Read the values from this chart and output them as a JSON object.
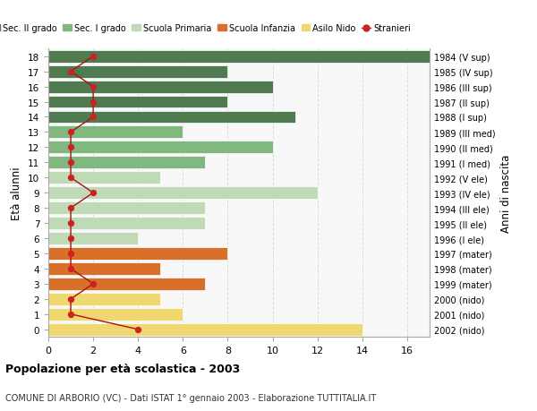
{
  "ages": [
    18,
    17,
    16,
    15,
    14,
    13,
    12,
    11,
    10,
    9,
    8,
    7,
    6,
    5,
    4,
    3,
    2,
    1,
    0
  ],
  "right_labels": [
    "1984 (V sup)",
    "1985 (IV sup)",
    "1986 (III sup)",
    "1987 (II sup)",
    "1988 (I sup)",
    "1989 (III med)",
    "1990 (II med)",
    "1991 (I med)",
    "1992 (V ele)",
    "1993 (IV ele)",
    "1994 (III ele)",
    "1995 (II ele)",
    "1996 (I ele)",
    "1997 (mater)",
    "1998 (mater)",
    "1999 (mater)",
    "2000 (nido)",
    "2001 (nido)",
    "2002 (nido)"
  ],
  "bar_values": [
    17,
    8,
    10,
    8,
    11,
    6,
    10,
    7,
    5,
    12,
    7,
    7,
    4,
    8,
    5,
    7,
    5,
    6,
    14
  ],
  "bar_colors": [
    "#507a50",
    "#507a50",
    "#507a50",
    "#507a50",
    "#507a50",
    "#80b880",
    "#80b880",
    "#80b880",
    "#c0dab8",
    "#c0dab8",
    "#c0dab8",
    "#c0dab8",
    "#c0dab8",
    "#d8702a",
    "#d8702a",
    "#d8702a",
    "#f0d870",
    "#f0d870",
    "#f0d870"
  ],
  "stranieri_values": [
    2,
    1,
    2,
    2,
    2,
    1,
    1,
    1,
    1,
    2,
    1,
    1,
    1,
    1,
    1,
    2,
    1,
    1,
    4
  ],
  "legend_labels": [
    "Sec. II grado",
    "Sec. I grado",
    "Scuola Primaria",
    "Scuola Infanzia",
    "Asilo Nido",
    "Stranieri"
  ],
  "legend_colors": [
    "#507a50",
    "#80b880",
    "#c0dab8",
    "#d8702a",
    "#f0d870",
    "#cc2222"
  ],
  "ylabel": "Età alunni",
  "ylabel_right": "Anni di nascita",
  "title": "Popolazione per età scolastica - 2003",
  "subtitle": "COMUNE DI ARBORIO (VC) - Dati ISTAT 1° gennaio 2003 - Elaborazione TUTTITALIA.IT",
  "bg_color": "#ffffff",
  "plot_bg_color": "#f8f8f8",
  "grid_color": "#dddddd",
  "bar_edge_color": "#ffffff",
  "stranieri_line_color": "#aa1111",
  "stranieri_dot_color": "#cc2222"
}
